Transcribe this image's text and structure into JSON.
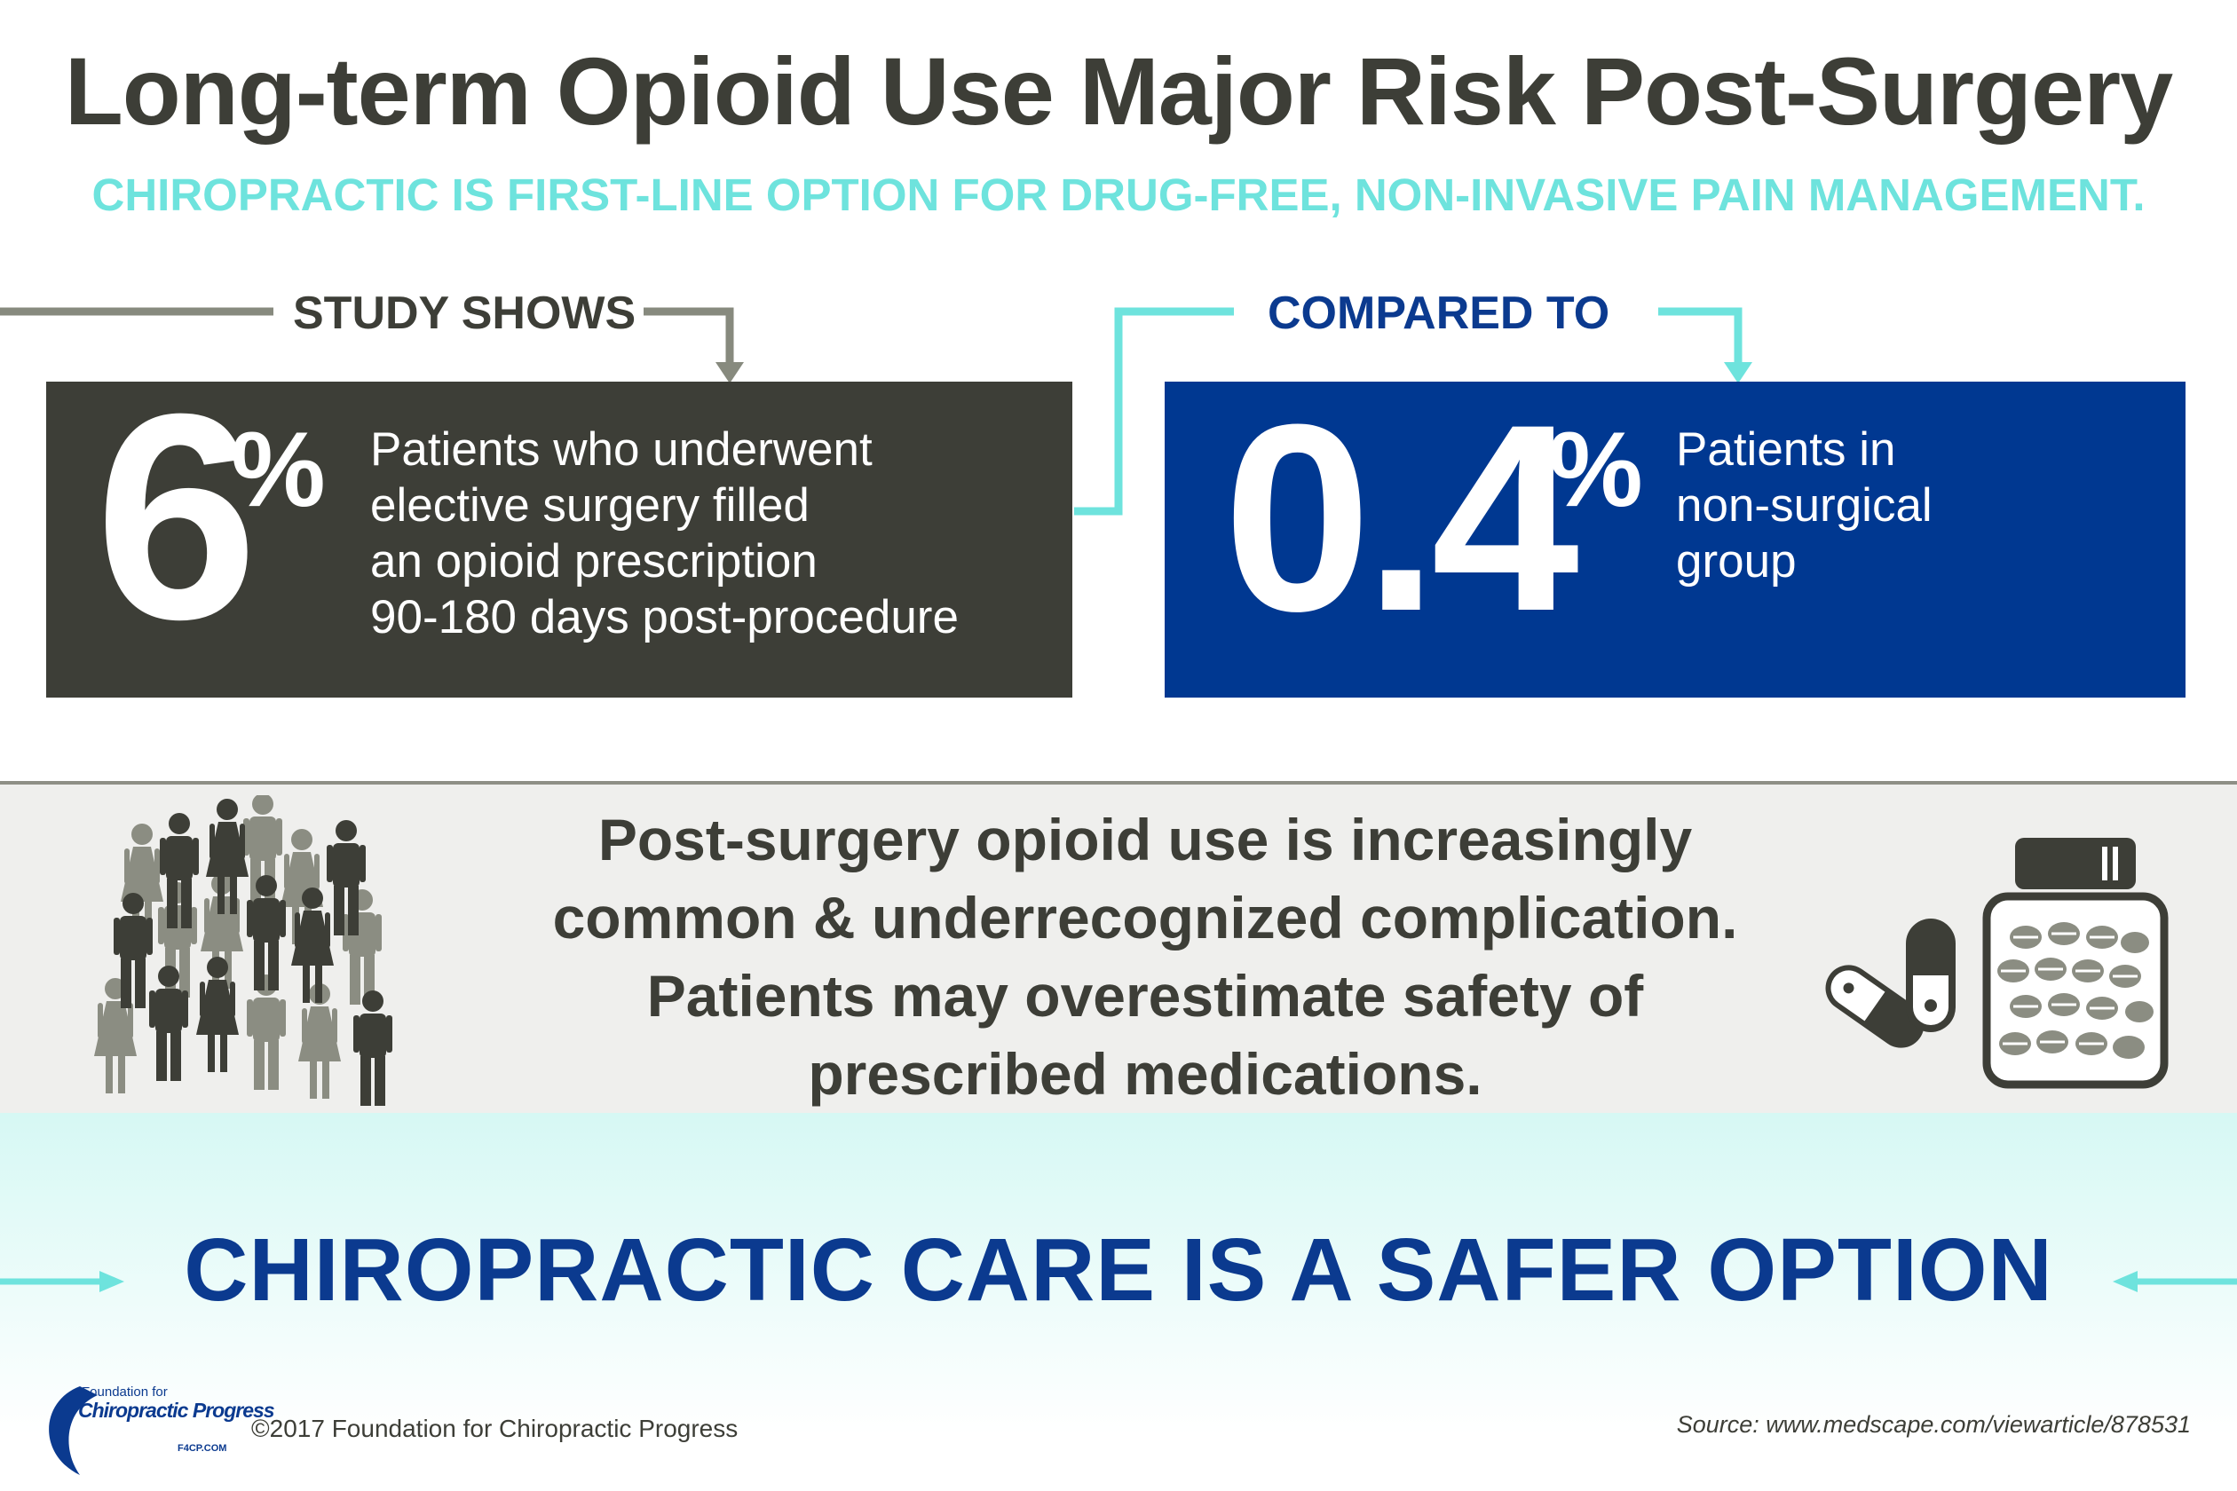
{
  "title": "Long-term Opioid Use Major Risk Post-Surgery",
  "subtitle": "CHIROPRACTIC IS FIRST-LINE OPTION FOR DRUG-FREE, NON-INVASIVE PAIN MANAGEMENT.",
  "study": {
    "label": "STUDY SHOWS",
    "number": "6",
    "percent_sign": "%",
    "lines": [
      "Patients who underwent",
      "elective surgery filled",
      "an opioid prescription",
      "90-180 days post-procedure"
    ]
  },
  "compared": {
    "label": "COMPARED TO",
    "number": "0.4",
    "percent_sign": "%",
    "lines": [
      "Patients in",
      "non-surgical",
      "group"
    ]
  },
  "band": {
    "lines": [
      "Post-surgery opioid use is increasingly",
      "common & underrecognized complication.",
      "Patients may overestimate safety of",
      "prescribed medications."
    ]
  },
  "cta": "CHIROPRACTIC CARE IS A SAFER OPTION",
  "footer": {
    "logo_line1": "Foundation for",
    "logo_line2": "Chiropractic Progress",
    "logo_line3": "F4CP.COM",
    "copyright": "©2017 Foundation for Chiropractic Progress",
    "source": "Source: www.medscape.com/viewarticle/878531"
  },
  "colors": {
    "dark_gray": "#3d3e37",
    "teal": "#6ee3dd",
    "navy": "#003891",
    "person_gray": "#8b8d82"
  },
  "icons": [
    "people-crowd-icon",
    "capsule-icon",
    "pill-bottle-icon",
    "arrow-right-icon",
    "arrow-left-icon"
  ]
}
